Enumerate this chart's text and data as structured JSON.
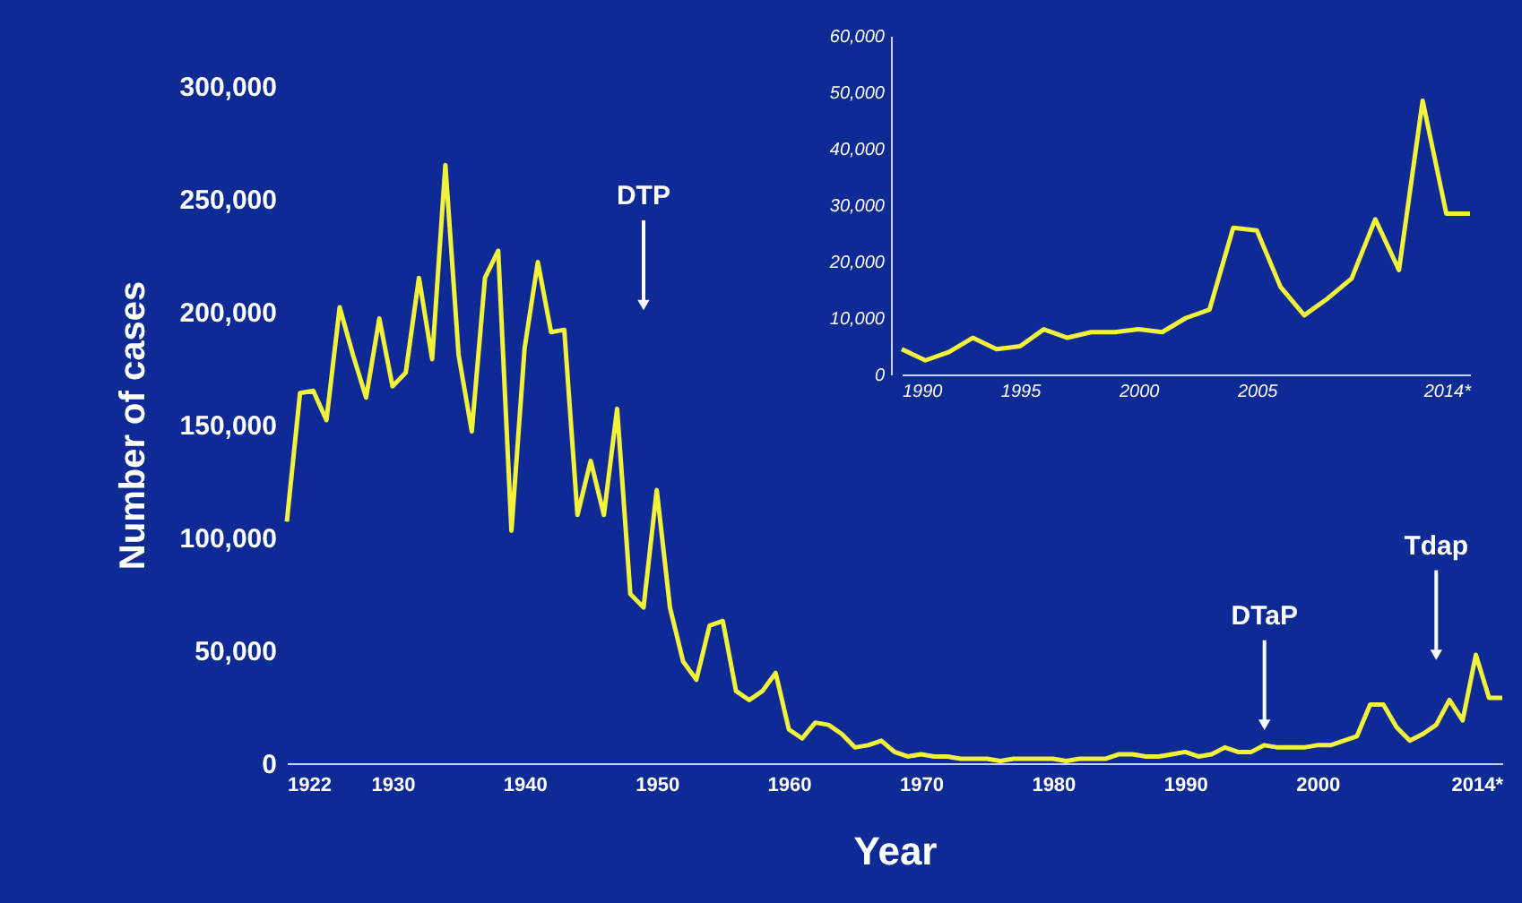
{
  "chart_data": [
    {
      "type": "line",
      "xlabel": "Year",
      "ylabel": "Number of cases",
      "grid": false,
      "marker": "none",
      "line_style": "solid",
      "x": [
        1922,
        1923,
        1924,
        1925,
        1926,
        1927,
        1928,
        1929,
        1930,
        1931,
        1932,
        1933,
        1934,
        1935,
        1936,
        1937,
        1938,
        1939,
        1940,
        1941,
        1942,
        1943,
        1944,
        1945,
        1946,
        1947,
        1948,
        1949,
        1950,
        1951,
        1952,
        1953,
        1954,
        1955,
        1956,
        1957,
        1958,
        1959,
        1960,
        1961,
        1962,
        1963,
        1964,
        1965,
        1966,
        1967,
        1968,
        1969,
        1970,
        1971,
        1972,
        1973,
        1974,
        1975,
        1976,
        1977,
        1978,
        1979,
        1980,
        1981,
        1982,
        1983,
        1984,
        1985,
        1986,
        1987,
        1988,
        1989,
        1990,
        1991,
        1992,
        1993,
        1994,
        1995,
        1996,
        1997,
        1998,
        1999,
        2000,
        2001,
        2002,
        2003,
        2004,
        2005,
        2006,
        2007,
        2008,
        2009,
        2010,
        2011,
        2012,
        2013,
        2014
      ],
      "series": [
        {
          "color": "#f2f23a",
          "values": [
            107000,
            164000,
            165000,
            152000,
            202000,
            181000,
            162000,
            197000,
            167000,
            173000,
            215000,
            179000,
            265000,
            181000,
            147000,
            215000,
            227000,
            103000,
            184000,
            222000,
            191000,
            192000,
            110000,
            134000,
            110000,
            157000,
            75000,
            69000,
            121000,
            69000,
            45000,
            37000,
            61000,
            63000,
            32000,
            28000,
            32000,
            40000,
            15000,
            11000,
            18000,
            17000,
            13000,
            7000,
            8000,
            10000,
            5000,
            3000,
            4000,
            3000,
            3000,
            2000,
            2000,
            2000,
            1000,
            2000,
            2000,
            2000,
            2000,
            1000,
            2000,
            2000,
            2000,
            4000,
            4000,
            3000,
            3000,
            4000,
            5000,
            3000,
            4000,
            7000,
            5000,
            5000,
            8000,
            7000,
            7000,
            7000,
            8000,
            8000,
            10000,
            12000,
            26000,
            26000,
            16000,
            10000,
            13000,
            17000,
            28000,
            19000,
            48000,
            29000,
            29000
          ]
        }
      ],
      "xlim": [
        1922,
        2014
      ],
      "ylim": [
        0,
        300000
      ],
      "xticks": [
        1922,
        1930,
        1940,
        1950,
        1960,
        1970,
        1980,
        1990,
        2000,
        {
          "value": 2014,
          "label": "2014*"
        }
      ],
      "yticks": [
        0,
        {
          "value": 50000,
          "label": "50,000"
        },
        {
          "value": 100000,
          "label": "100,000"
        },
        {
          "value": 150000,
          "label": "150,000"
        },
        {
          "value": 200000,
          "label": "200,000"
        },
        {
          "value": 250000,
          "label": "250,000"
        },
        {
          "value": 300000,
          "label": "300,000"
        }
      ],
      "annotations": [
        {
          "text": "DTP",
          "x": 1949,
          "y": 203000
        },
        {
          "text": "DTaP",
          "x": 1996,
          "y": 17000
        },
        {
          "text": "Tdap",
          "x": 2009,
          "y": 48000
        }
      ]
    },
    {
      "type": "line",
      "grid": false,
      "marker": "none",
      "line_style": "solid",
      "x": [
        1990,
        1991,
        1992,
        1993,
        1994,
        1995,
        1996,
        1997,
        1998,
        1999,
        2000,
        2001,
        2002,
        2003,
        2004,
        2005,
        2006,
        2007,
        2008,
        2009,
        2010,
        2011,
        2012,
        2013,
        2014
      ],
      "series": [
        {
          "color": "#f2f23a",
          "values": [
            4500,
            2500,
            4000,
            6500,
            4500,
            5000,
            8000,
            6500,
            7500,
            7500,
            8000,
            7500,
            10000,
            11500,
            26000,
            25500,
            15500,
            10500,
            13500,
            17000,
            27500,
            18500,
            48500,
            28500,
            28500
          ]
        }
      ],
      "xlim": [
        1990,
        2014
      ],
      "ylim": [
        0,
        60000
      ],
      "xticks": [
        1990,
        1995,
        2000,
        2005,
        {
          "value": 2014,
          "label": "2014*"
        }
      ],
      "yticks": [
        0,
        {
          "value": 10000,
          "label": "10,000"
        },
        {
          "value": 20000,
          "label": "20,000"
        },
        {
          "value": 30000,
          "label": "30,000"
        },
        {
          "value": 40000,
          "label": "40,000"
        },
        {
          "value": 50000,
          "label": "50,000"
        },
        {
          "value": 60000,
          "label": "60,000"
        }
      ]
    }
  ]
}
